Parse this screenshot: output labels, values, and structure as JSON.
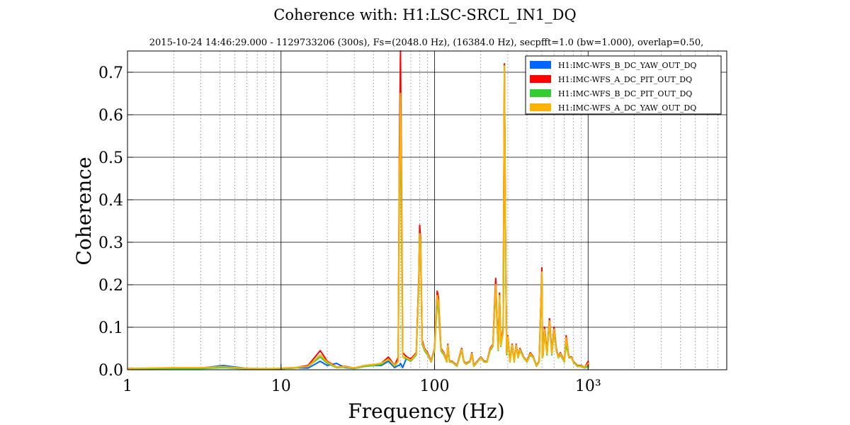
{
  "chart_data": {
    "type": "line",
    "title": "Coherence with: H1:LSC-SRCL_IN1_DQ",
    "subtitle": "2015-10-24 14:46:29.000 - 1129733206 (300s), Fs=(2048.0 Hz), (16384.0 Hz), secpfft=1.0 (bw=1.000), overlap=0.50,",
    "xlabel": "Frequency (Hz)",
    "ylabel": "Coherence",
    "xscale": "log",
    "xlim": [
      1,
      8000
    ],
    "ylim": [
      0,
      0.75
    ],
    "grid": true,
    "legend_position": "top-right",
    "x_ticks": [
      {
        "value": 1,
        "label": "1"
      },
      {
        "value": 10,
        "label": "10"
      },
      {
        "value": 100,
        "label": "100"
      },
      {
        "value": 1000,
        "label": "10³"
      }
    ],
    "y_ticks": [
      {
        "value": 0.0,
        "label": "0.0"
      },
      {
        "value": 0.1,
        "label": "0.1"
      },
      {
        "value": 0.2,
        "label": "0.2"
      },
      {
        "value": 0.3,
        "label": "0.3"
      },
      {
        "value": 0.4,
        "label": "0.4"
      },
      {
        "value": 0.5,
        "label": "0.5"
      },
      {
        "value": 0.6,
        "label": "0.6"
      },
      {
        "value": 0.7,
        "label": "0.7"
      }
    ],
    "series": [
      {
        "name": "H1:IMC-WFS_B_DC_YAW_OUT_DQ",
        "color": "#0066ff",
        "x": [
          1,
          2,
          3,
          4.2,
          6,
          9,
          12,
          15,
          18,
          20,
          23,
          26,
          30,
          35,
          40,
          45,
          50,
          55,
          58,
          59,
          60,
          61,
          62,
          66,
          70,
          76,
          79,
          80,
          81,
          83,
          86,
          90,
          95,
          100,
          104,
          106,
          110,
          115,
          120,
          122,
          125,
          130,
          140,
          150,
          155,
          160,
          170,
          175,
          180,
          190,
          200,
          210,
          220,
          230,
          240,
          250,
          255,
          260,
          265,
          270,
          280,
          285,
          290,
          295,
          300,
          310,
          320,
          330,
          340,
          350,
          360,
          380,
          400,
          420,
          440,
          460,
          480,
          500,
          505,
          510,
          520,
          540,
          560,
          580,
          600,
          620,
          640,
          660,
          700,
          720,
          750,
          780,
          800,
          850,
          900,
          950,
          1000,
          1010
        ],
        "y": [
          0.003,
          0.004,
          0.004,
          0.01,
          0.003,
          0.002,
          0.005,
          0.004,
          0.02,
          0.01,
          0.015,
          0.005,
          0.003,
          0.008,
          0.01,
          0.01,
          0.02,
          0.005,
          0.01,
          0.01,
          0.015,
          0.01,
          0.005,
          0.03,
          0.025,
          0.04,
          0.21,
          0.33,
          0.3,
          0.06,
          0.05,
          0.04,
          0.02,
          0.05,
          0.17,
          0.16,
          0.05,
          0.04,
          0.02,
          0.06,
          0.02,
          0.02,
          0.01,
          0.05,
          0.02,
          0.015,
          0.02,
          0.04,
          0.01,
          0.02,
          0.03,
          0.02,
          0.02,
          0.05,
          0.06,
          0.2,
          0.12,
          0.05,
          0.18,
          0.06,
          0.1,
          0.71,
          0.3,
          0.04,
          0.08,
          0.02,
          0.06,
          0.02,
          0.06,
          0.03,
          0.05,
          0.03,
          0.02,
          0.04,
          0.03,
          0.01,
          0.02,
          0.23,
          0.03,
          0.04,
          0.1,
          0.04,
          0.12,
          0.04,
          0.1,
          0.05,
          0.03,
          0.04,
          0.02,
          0.07,
          0.03,
          0.03,
          0.02,
          0.01,
          0.01,
          0.005,
          0.01,
          0.005
        ]
      },
      {
        "name": "H1:IMC-WFS_A_DC_PIT_OUT_DQ",
        "color": "#ff0000",
        "x": [
          1,
          2,
          3,
          4.2,
          6,
          9,
          12,
          15,
          18,
          20,
          23,
          26,
          30,
          35,
          40,
          45,
          50,
          55,
          58,
          59,
          60,
          61,
          62,
          66,
          70,
          76,
          79,
          80,
          81,
          83,
          86,
          90,
          95,
          100,
          104,
          106,
          110,
          115,
          120,
          122,
          125,
          130,
          140,
          150,
          155,
          160,
          170,
          175,
          180,
          190,
          200,
          210,
          220,
          230,
          240,
          250,
          255,
          260,
          265,
          270,
          280,
          285,
          290,
          295,
          300,
          310,
          320,
          330,
          340,
          350,
          360,
          380,
          400,
          420,
          440,
          460,
          480,
          500,
          505,
          510,
          520,
          540,
          560,
          580,
          600,
          620,
          640,
          660,
          700,
          720,
          750,
          780,
          800,
          850,
          900,
          950,
          1000,
          1010
        ],
        "y": [
          0.003,
          0.004,
          0.004,
          0.006,
          0.003,
          0.002,
          0.004,
          0.01,
          0.045,
          0.02,
          0.006,
          0.008,
          0.004,
          0.01,
          0.012,
          0.015,
          0.03,
          0.01,
          0.03,
          0.5,
          0.75,
          0.4,
          0.04,
          0.03,
          0.025,
          0.04,
          0.22,
          0.34,
          0.31,
          0.07,
          0.05,
          0.04,
          0.02,
          0.05,
          0.185,
          0.17,
          0.05,
          0.04,
          0.02,
          0.06,
          0.02,
          0.02,
          0.01,
          0.05,
          0.02,
          0.015,
          0.02,
          0.04,
          0.01,
          0.02,
          0.03,
          0.02,
          0.02,
          0.05,
          0.06,
          0.215,
          0.12,
          0.05,
          0.18,
          0.06,
          0.1,
          0.72,
          0.3,
          0.04,
          0.08,
          0.02,
          0.06,
          0.02,
          0.06,
          0.03,
          0.05,
          0.03,
          0.02,
          0.04,
          0.03,
          0.01,
          0.02,
          0.24,
          0.03,
          0.04,
          0.1,
          0.04,
          0.12,
          0.04,
          0.1,
          0.05,
          0.03,
          0.04,
          0.02,
          0.08,
          0.03,
          0.03,
          0.02,
          0.01,
          0.01,
          0.005,
          0.02,
          0.005
        ]
      },
      {
        "name": "H1:IMC-WFS_B_DC_PIT_OUT_DQ",
        "color": "#33cc33",
        "x": [
          1,
          2,
          3,
          4.2,
          6,
          9,
          12,
          15,
          18,
          20,
          23,
          26,
          30,
          35,
          40,
          45,
          50,
          55,
          58,
          59,
          60,
          61,
          62,
          66,
          70,
          76,
          79,
          80,
          81,
          83,
          86,
          90,
          95,
          100,
          104,
          106,
          110,
          115,
          120,
          122,
          125,
          130,
          140,
          150,
          155,
          160,
          170,
          175,
          180,
          190,
          200,
          210,
          220,
          230,
          240,
          250,
          255,
          260,
          265,
          270,
          280,
          285,
          290,
          295,
          300,
          310,
          320,
          330,
          340,
          350,
          360,
          380,
          400,
          420,
          440,
          460,
          480,
          500,
          505,
          510,
          520,
          540,
          560,
          580,
          600,
          620,
          640,
          660,
          700,
          720,
          750,
          780,
          800,
          850,
          900,
          950,
          1000,
          1010
        ],
        "y": [
          0.002,
          0.003,
          0.003,
          0.005,
          0.002,
          0.002,
          0.004,
          0.008,
          0.03,
          0.015,
          0.005,
          0.006,
          0.003,
          0.008,
          0.01,
          0.012,
          0.025,
          0.008,
          0.02,
          0.4,
          0.56,
          0.3,
          0.03,
          0.025,
          0.02,
          0.035,
          0.2,
          0.32,
          0.29,
          0.06,
          0.045,
          0.035,
          0.018,
          0.045,
          0.16,
          0.14,
          0.045,
          0.035,
          0.018,
          0.055,
          0.018,
          0.018,
          0.008,
          0.045,
          0.018,
          0.013,
          0.018,
          0.035,
          0.008,
          0.018,
          0.028,
          0.018,
          0.018,
          0.045,
          0.055,
          0.19,
          0.11,
          0.045,
          0.17,
          0.055,
          0.09,
          0.71,
          0.28,
          0.035,
          0.075,
          0.018,
          0.055,
          0.018,
          0.055,
          0.028,
          0.045,
          0.028,
          0.018,
          0.035,
          0.028,
          0.008,
          0.018,
          0.22,
          0.028,
          0.035,
          0.09,
          0.035,
          0.11,
          0.035,
          0.09,
          0.045,
          0.028,
          0.035,
          0.018,
          0.06,
          0.028,
          0.028,
          0.018,
          0.008,
          0.008,
          0.004,
          0.008,
          0.004
        ]
      },
      {
        "name": "H1:IMC-WFS_A_DC_YAW_OUT_DQ",
        "color": "#ffb300",
        "x": [
          1,
          2,
          3,
          4.2,
          6,
          9,
          12,
          15,
          18,
          20,
          23,
          26,
          30,
          35,
          40,
          45,
          50,
          55,
          58,
          59,
          60,
          61,
          62,
          66,
          70,
          76,
          79,
          80,
          81,
          83,
          86,
          90,
          95,
          100,
          104,
          106,
          110,
          115,
          120,
          122,
          125,
          130,
          140,
          150,
          155,
          160,
          170,
          175,
          180,
          190,
          200,
          210,
          220,
          230,
          240,
          250,
          255,
          260,
          265,
          270,
          280,
          285,
          290,
          295,
          300,
          310,
          320,
          330,
          340,
          350,
          360,
          380,
          400,
          420,
          440,
          460,
          480,
          500,
          505,
          510,
          520,
          540,
          560,
          580,
          600,
          620,
          640,
          660,
          700,
          720,
          750,
          780,
          800,
          850,
          900,
          950,
          1000,
          1010
        ],
        "y": [
          0.003,
          0.005,
          0.005,
          0.007,
          0.003,
          0.003,
          0.005,
          0.008,
          0.035,
          0.018,
          0.006,
          0.007,
          0.004,
          0.01,
          0.012,
          0.015,
          0.025,
          0.01,
          0.02,
          0.45,
          0.65,
          0.35,
          0.03,
          0.028,
          0.022,
          0.038,
          0.21,
          0.32,
          0.3,
          0.065,
          0.048,
          0.038,
          0.019,
          0.048,
          0.175,
          0.16,
          0.048,
          0.038,
          0.019,
          0.058,
          0.019,
          0.019,
          0.009,
          0.048,
          0.019,
          0.014,
          0.019,
          0.038,
          0.009,
          0.019,
          0.029,
          0.019,
          0.019,
          0.048,
          0.058,
          0.2,
          0.115,
          0.048,
          0.175,
          0.058,
          0.095,
          0.715,
          0.29,
          0.038,
          0.078,
          0.019,
          0.058,
          0.019,
          0.058,
          0.029,
          0.048,
          0.029,
          0.019,
          0.038,
          0.029,
          0.009,
          0.019,
          0.23,
          0.029,
          0.038,
          0.095,
          0.038,
          0.115,
          0.038,
          0.095,
          0.048,
          0.029,
          0.038,
          0.019,
          0.075,
          0.029,
          0.029,
          0.019,
          0.009,
          0.009,
          0.005,
          0.015,
          0.005
        ]
      }
    ]
  }
}
